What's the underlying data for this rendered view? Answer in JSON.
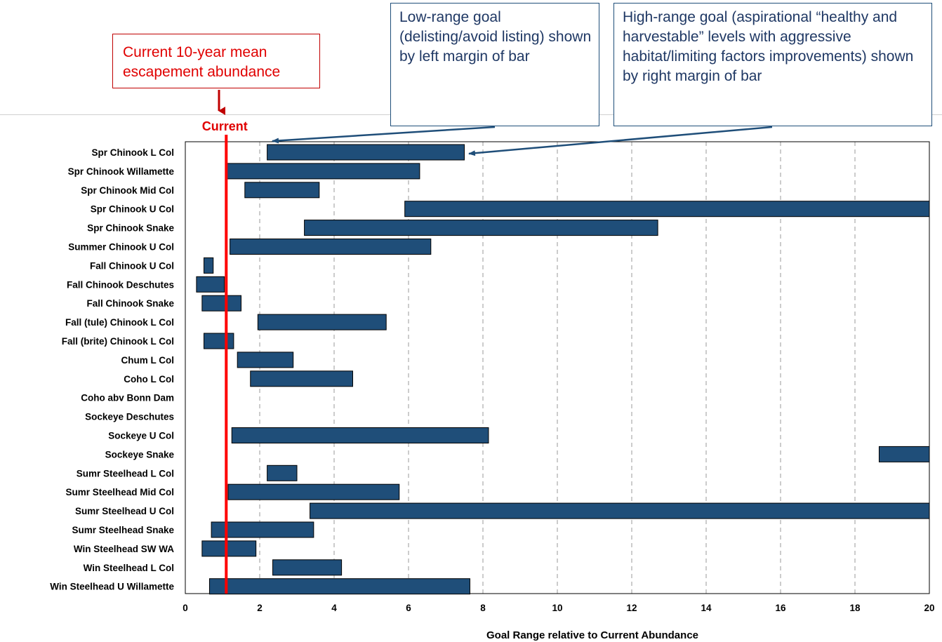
{
  "annotations": {
    "current_callout": "Current 10-year mean escapement abundance",
    "low_range_callout": "Low-range goal (delisting/avoid listing) shown by left margin of bar",
    "high_range_callout": "High-range goal (aspirational “healthy and harvestable” levels with aggressive habitat/limiting factors improvements) shown by right margin of bar"
  },
  "colors": {
    "bar": "#1f4e79",
    "bar_stroke": "#000000",
    "current_line": "#ff0000",
    "grid": "#9a9a9a"
  },
  "chart_data": {
    "type": "bar",
    "orientation": "horizontal-range",
    "xlabel": "Goal Range relative to Current Abundance",
    "xlim": [
      0,
      20
    ],
    "xticks": [
      0,
      2,
      4,
      6,
      8,
      10,
      12,
      14,
      16,
      18,
      20
    ],
    "grid": "vertical dashed",
    "current_label": "Current",
    "current_value": 1.1,
    "categories": [
      "Spr Chinook L Col",
      "Spr Chinook Willamette",
      "Spr Chinook Mid Col",
      "Spr Chinook U Col",
      "Spr Chinook Snake",
      "Summer Chinook U Col",
      "Fall Chinook U Col",
      "Fall Chinook Deschutes",
      "Fall Chinook Snake",
      "Fall (tule) Chinook L Col",
      "Fall (brite) Chinook L Col",
      "Chum L Col",
      "Coho L Col",
      "Coho abv Bonn Dam",
      "Sockeye Deschutes",
      "Sockeye U Col",
      "Sockeye Snake",
      "Sumr Steelhead L Col",
      "Sumr Steelhead Mid Col",
      "Sumr Steelhead U Col",
      "Sumr Steelhead Snake",
      "Win Steelhead SW WA",
      "Win Steelhead L Col",
      "Win Steelhead U Willamette"
    ],
    "ranges": [
      [
        2.2,
        7.5
      ],
      [
        1.1,
        6.3
      ],
      [
        1.6,
        3.6
      ],
      [
        5.9,
        20
      ],
      [
        3.2,
        12.7
      ],
      [
        1.2,
        6.6
      ],
      [
        0.5,
        0.75
      ],
      [
        0.3,
        1.05
      ],
      [
        0.45,
        1.5
      ],
      [
        1.95,
        5.4
      ],
      [
        0.5,
        1.3
      ],
      [
        1.4,
        2.9
      ],
      [
        1.75,
        4.5
      ],
      null,
      null,
      [
        1.25,
        8.15
      ],
      [
        18.65,
        20
      ],
      [
        2.2,
        3.0
      ],
      [
        1.15,
        5.75
      ],
      [
        3.35,
        20
      ],
      [
        0.7,
        3.45
      ],
      [
        0.45,
        1.9
      ],
      [
        2.35,
        4.2
      ],
      [
        0.65,
        7.65
      ]
    ]
  }
}
